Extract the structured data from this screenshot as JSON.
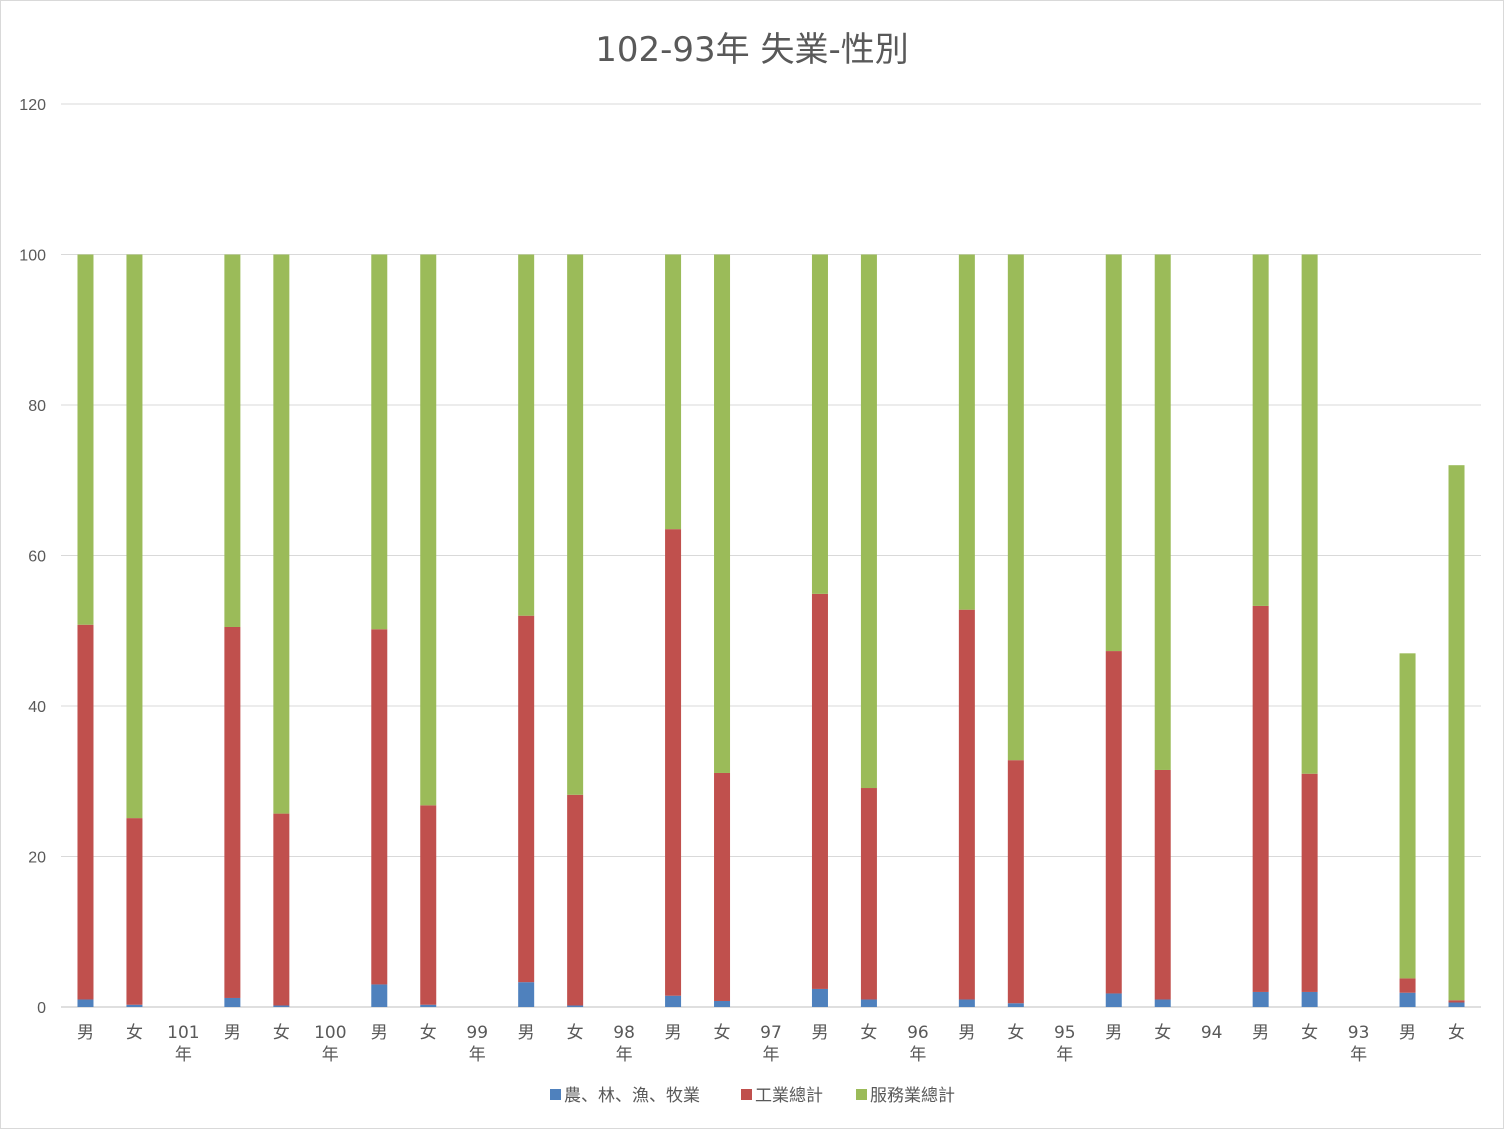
{
  "chart_data": {
    "type": "bar",
    "stacked": true,
    "title": "102-93年 失業-性別",
    "xlabel": "",
    "ylabel": "",
    "ylim": [
      0,
      120
    ],
    "yticks": [
      0,
      20,
      40,
      60,
      80,
      100,
      120
    ],
    "grid": true,
    "legend_position": "bottom",
    "categories": [
      [
        "",
        "男"
      ],
      [
        "",
        "女"
      ],
      [
        "",
        ""
      ],
      [
        "101年",
        "男"
      ],
      [
        "",
        "女"
      ],
      [
        "",
        ""
      ],
      [
        "100年",
        "男"
      ],
      [
        "",
        "女"
      ],
      [
        "",
        ""
      ],
      [
        "99年",
        "男"
      ],
      [
        "",
        "女"
      ],
      [
        "",
        ""
      ],
      [
        "98年",
        "男"
      ],
      [
        "",
        "女"
      ],
      [
        "",
        ""
      ],
      [
        "97年",
        "男"
      ],
      [
        "",
        "女"
      ],
      [
        "",
        ""
      ],
      [
        "96年",
        "男"
      ],
      [
        "",
        "女"
      ],
      [
        "",
        ""
      ],
      [
        "95年",
        "男"
      ],
      [
        "",
        "女"
      ],
      [
        "",
        ""
      ],
      [
        "94",
        "男"
      ],
      [
        "",
        "女"
      ],
      [
        "",
        ""
      ],
      [
        "93年",
        "男"
      ],
      [
        "",
        "女"
      ]
    ],
    "series": [
      {
        "name": "農、林、漁、牧業",
        "color": "#4f81bd",
        "values": [
          1.0,
          0.3,
          0,
          1.2,
          0.2,
          0,
          3.0,
          0.3,
          0,
          3.3,
          0.2,
          0,
          1.5,
          0.8,
          0,
          2.4,
          1.0,
          0,
          1.0,
          0.5,
          0,
          1.8,
          1.0,
          0,
          2.0,
          2.0,
          0,
          1.9,
          0.6
        ]
      },
      {
        "name": "工業總計",
        "color": "#c0504d",
        "values": [
          49.8,
          24.8,
          0,
          49.3,
          25.5,
          0,
          47.2,
          26.5,
          0,
          48.7,
          28.0,
          0,
          62.0,
          30.3,
          0,
          52.5,
          28.1,
          0,
          51.8,
          32.3,
          0,
          45.5,
          30.5,
          0,
          51.3,
          29.0,
          0,
          1.9,
          0.3
        ]
      },
      {
        "name": "服務業總計",
        "color": "#9bbb59",
        "values": [
          49.2,
          74.9,
          0,
          49.5,
          74.3,
          0,
          49.8,
          73.2,
          0,
          48.0,
          71.8,
          0,
          36.5,
          68.9,
          0,
          45.1,
          70.9,
          0,
          47.2,
          67.2,
          0,
          52.7,
          68.5,
          0,
          46.7,
          69.0,
          0,
          43.2,
          71.1
        ]
      }
    ]
  }
}
